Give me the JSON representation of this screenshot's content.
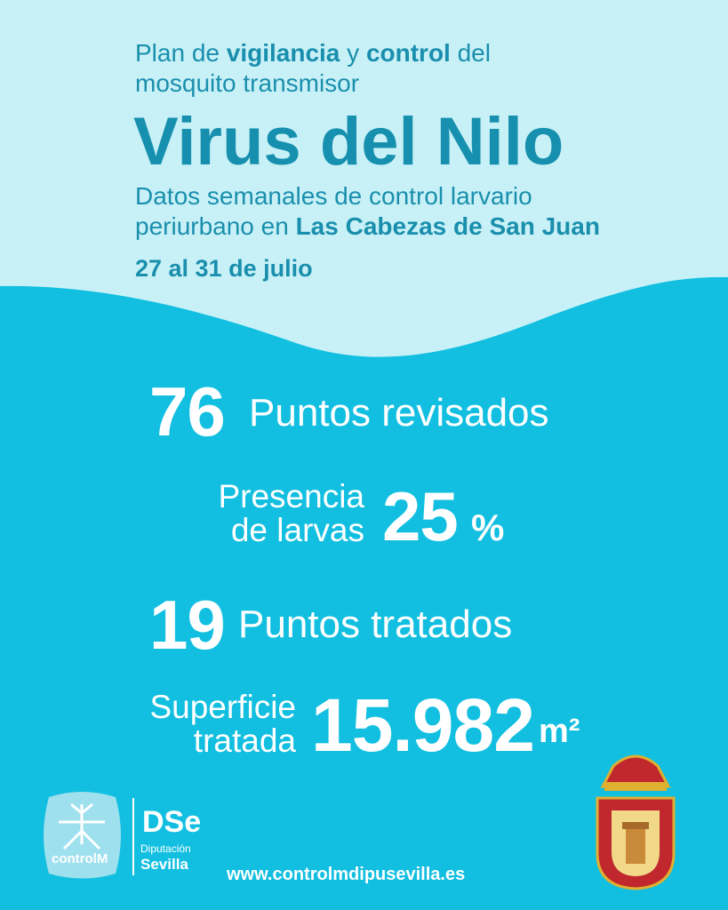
{
  "header": {
    "intro_line1": [
      {
        "text": "Plan de ",
        "bold": false
      },
      {
        "text": "vigilancia",
        "bold": true
      },
      {
        "text": " y ",
        "bold": false
      },
      {
        "text": "control",
        "bold": true
      },
      {
        "text": " del",
        "bold": false
      }
    ],
    "intro_line2": "mosquito transmisor",
    "title": "Virus del Nilo",
    "subtitle_line1": "Datos semanales de control larvario",
    "subtitle_line2": [
      {
        "text": "periurbano en ",
        "bold": false
      },
      {
        "text": "Las Cabezas de San Juan",
        "bold": true
      }
    ],
    "date": "27 al 31 de julio"
  },
  "stats": {
    "revisados": {
      "value": "76",
      "label": "Puntos revisados"
    },
    "larvas": {
      "label_lines": [
        "Presencia",
        "de larvas"
      ],
      "value": "25",
      "unit": "%"
    },
    "tratados": {
      "value": "19",
      "label": "Puntos tratados"
    },
    "superficie": {
      "label_lines": [
        "Superficie",
        "tratada"
      ],
      "value": "15.982",
      "unit": "m²"
    }
  },
  "footer": {
    "controlm": "controlM",
    "diputacion": "Diputación",
    "sevilla": "Sevilla",
    "url": "www.controlmdipusevilla.es"
  }
}
